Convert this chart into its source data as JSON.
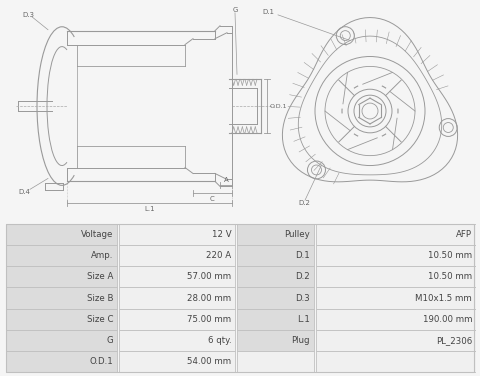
{
  "table_data": [
    [
      "Voltage",
      "12 V",
      "Pulley",
      "AFP"
    ],
    [
      "Amp.",
      "220 A",
      "D.1",
      "10.50 mm"
    ],
    [
      "Size A",
      "57.00 mm",
      "D.2",
      "10.50 mm"
    ],
    [
      "Size B",
      "28.00 mm",
      "D.3",
      "M10x1.5 mm"
    ],
    [
      "Size C",
      "75.00 mm",
      "L.1",
      "190.00 mm"
    ],
    [
      "G",
      "6 qty.",
      "Plug",
      "PL_2306"
    ],
    [
      "O.D.1",
      "54.00 mm",
      "",
      ""
    ]
  ],
  "bg_color": "#f5f5f5",
  "table_label_bg": "#dcdcdc",
  "table_value_bg": "#f0f0f0",
  "table_border": "#c0c0c0",
  "text_color": "#444444",
  "dc": "#999999",
  "lc": "#666666",
  "separator_color": "#c8c8c8"
}
